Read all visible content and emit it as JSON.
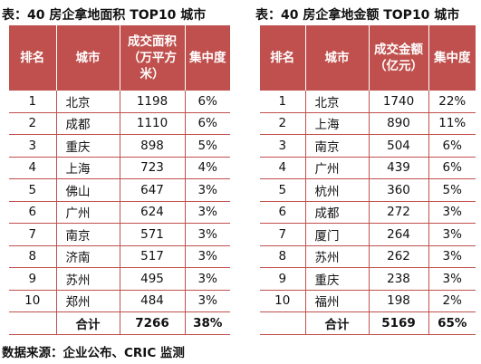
{
  "left": {
    "title": "表：40 房企拿地面积 TOP10 城市",
    "headers": [
      "排名",
      "城市",
      "成交面积（万平方米）",
      "集中度"
    ],
    "rows": [
      {
        "rank": "1",
        "city": "北京",
        "value": "1198",
        "share": "6%"
      },
      {
        "rank": "2",
        "city": "成都",
        "value": "1110",
        "share": "6%"
      },
      {
        "rank": "3",
        "city": "重庆",
        "value": "898",
        "share": "5%"
      },
      {
        "rank": "4",
        "city": "上海",
        "value": "723",
        "share": "4%"
      },
      {
        "rank": "5",
        "city": "佛山",
        "value": "647",
        "share": "3%"
      },
      {
        "rank": "6",
        "city": "广州",
        "value": "624",
        "share": "3%"
      },
      {
        "rank": "7",
        "city": "南京",
        "value": "571",
        "share": "3%"
      },
      {
        "rank": "8",
        "city": "济南",
        "value": "517",
        "share": "3%"
      },
      {
        "rank": "9",
        "city": "苏州",
        "value": "495",
        "share": "3%"
      },
      {
        "rank": "10",
        "city": "郑州",
        "value": "484",
        "share": "3%"
      }
    ],
    "total": {
      "label": "合计",
      "value": "7266",
      "share": "38%"
    }
  },
  "right": {
    "title": "表：40 房企拿地金额 TOP10 城市",
    "headers": [
      "排名",
      "城市",
      "成交金额（亿元）",
      "集中度"
    ],
    "rows": [
      {
        "rank": "1",
        "city": "北京",
        "value": "1740",
        "share": "22%"
      },
      {
        "rank": "2",
        "city": "上海",
        "value": "890",
        "share": "11%"
      },
      {
        "rank": "3",
        "city": "南京",
        "value": "504",
        "share": "6%"
      },
      {
        "rank": "4",
        "city": "广州",
        "value": "439",
        "share": "6%"
      },
      {
        "rank": "5",
        "city": "杭州",
        "value": "360",
        "share": "5%"
      },
      {
        "rank": "6",
        "city": "成都",
        "value": "272",
        "share": "3%"
      },
      {
        "rank": "7",
        "city": "厦门",
        "value": "264",
        "share": "3%"
      },
      {
        "rank": "8",
        "city": "苏州",
        "value": "262",
        "share": "3%"
      },
      {
        "rank": "9",
        "city": "重庆",
        "value": "238",
        "share": "3%"
      },
      {
        "rank": "10",
        "city": "福州",
        "value": "198",
        "share": "2%"
      }
    ],
    "total": {
      "label": "合计",
      "value": "5169",
      "share": "65%"
    }
  },
  "source": "数据来源：企业公布、CRIC 监测"
}
